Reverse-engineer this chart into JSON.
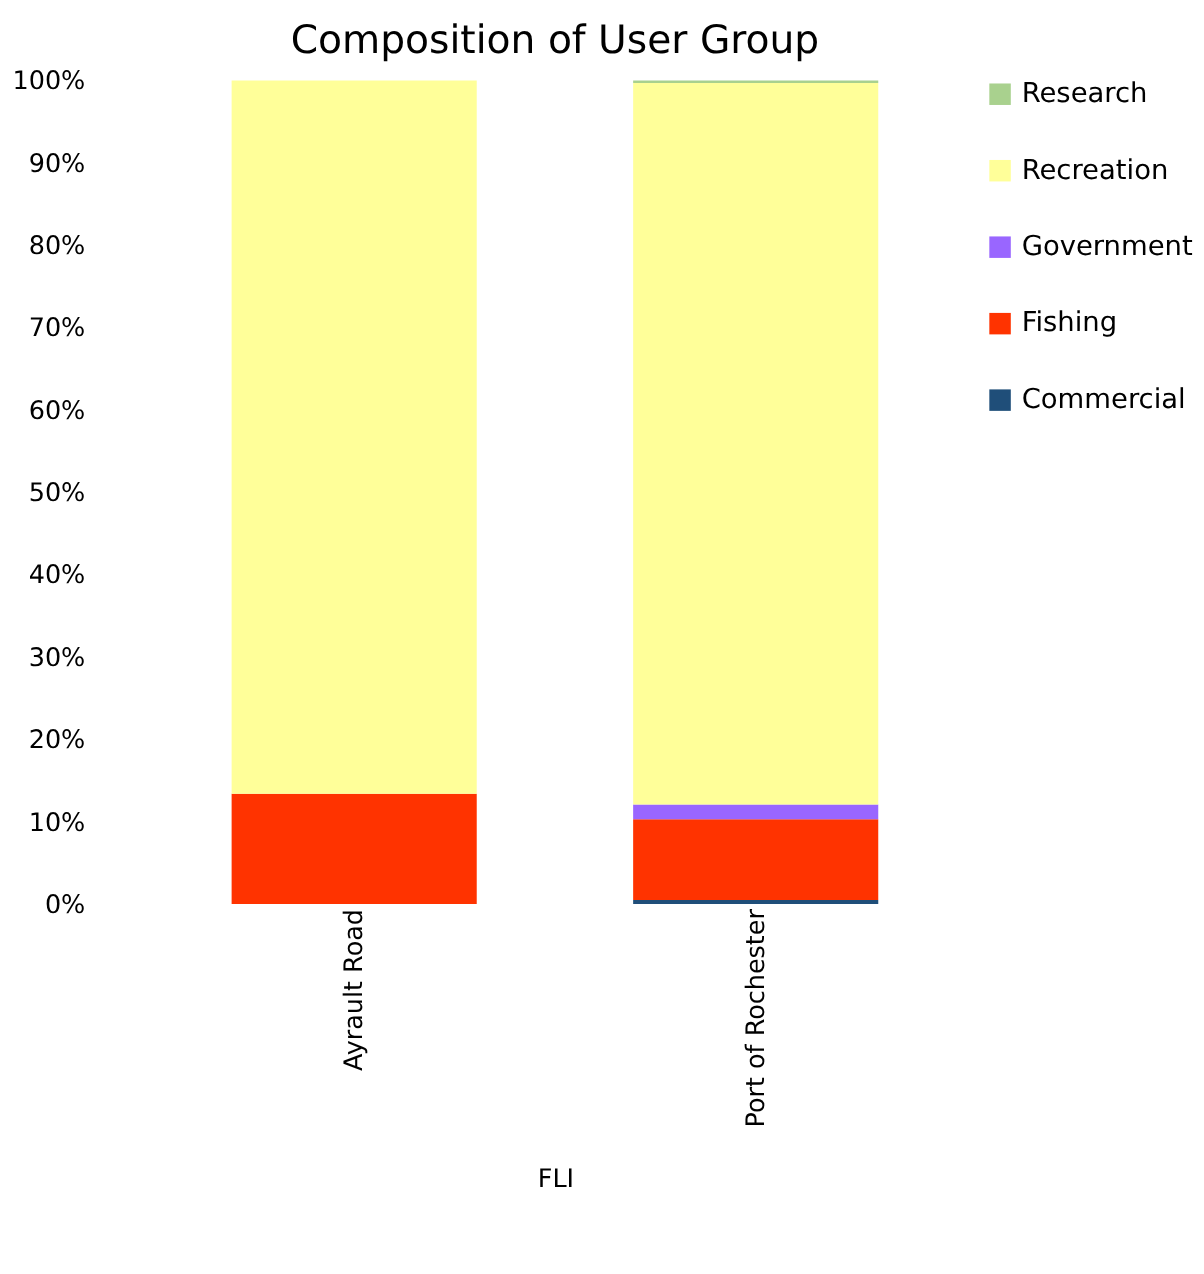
{
  "chart_data": {
    "type": "bar",
    "title": "Composition of User Group",
    "xlabel": "FLI",
    "categories": [
      "Ayrault Road",
      "Port of Rochester"
    ],
    "stacked": true,
    "legend": "right",
    "grid": false,
    "series": [
      {
        "name": "Commercial",
        "color": "#1f4e79",
        "values": [
          0,
          0.5
        ]
      },
      {
        "name": "Fishing",
        "color": "#ff3300",
        "values": [
          13.4,
          9.8
        ]
      },
      {
        "name": "Government",
        "color": "#9966ff",
        "values": [
          0,
          1.8
        ]
      },
      {
        "name": "Recreation",
        "color": "#ffff99",
        "values": [
          86.6,
          87.6
        ]
      },
      {
        "name": "Research",
        "color": "#a9d18e",
        "values": [
          0,
          0.3
        ]
      }
    ],
    "ylim": [
      0,
      100
    ],
    "yticks": [
      {
        "value": 0,
        "label": "0%"
      },
      {
        "value": 10,
        "label": "10%"
      },
      {
        "value": 20,
        "label": "20%"
      },
      {
        "value": 30,
        "label": "30%"
      },
      {
        "value": 40,
        "label": "40%"
      },
      {
        "value": 50,
        "label": "50%"
      },
      {
        "value": 60,
        "label": "60%"
      },
      {
        "value": 70,
        "label": "70%"
      },
      {
        "value": 80,
        "label": "80%"
      },
      {
        "value": 90,
        "label": "90%"
      },
      {
        "value": 100,
        "label": "100%"
      }
    ]
  }
}
